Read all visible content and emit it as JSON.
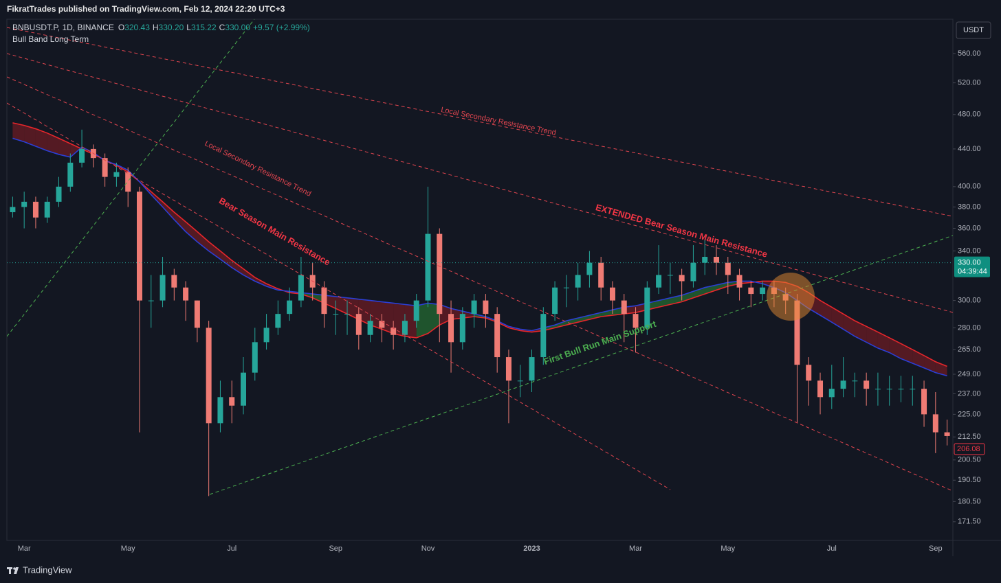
{
  "header": {
    "text": "FikratTrades published on TradingView.com, Feb 12, 2024 22:20 UTC+3"
  },
  "chart_data": {
    "type": "candlestick",
    "legend": {
      "symbol": "BNBUSDT.P, 1D, BINANCE",
      "ohlc": [
        {
          "key": "O",
          "value": "320.43"
        },
        {
          "key": "H",
          "value": "330.20"
        },
        {
          "key": "L",
          "value": "315.22"
        },
        {
          "key": "C",
          "value": "330.00"
        }
      ],
      "change": "+9.57 (+2.99%)",
      "indicator": "Bull Band Long Term"
    },
    "currency": "USDT",
    "log_scale": true,
    "up_color": "#26a69a",
    "down_color": "#ef7b74",
    "categories": [
      null,
      "Mar",
      null,
      null,
      null,
      null,
      null,
      null,
      null,
      null,
      "May",
      null,
      null,
      null,
      null,
      null,
      null,
      null,
      null,
      "Jul",
      null,
      null,
      null,
      null,
      null,
      null,
      null,
      null,
      "Sep",
      null,
      null,
      null,
      null,
      null,
      null,
      null,
      "Nov",
      null,
      null,
      null,
      null,
      null,
      null,
      null,
      null,
      "2023",
      null,
      null,
      null,
      null,
      null,
      null,
      null,
      null,
      "Mar",
      null,
      null,
      null,
      null,
      null,
      null,
      null,
      "May",
      null,
      null,
      null,
      null,
      null,
      null,
      null,
      null,
      "Jul",
      null,
      null,
      null,
      null,
      null,
      null,
      null,
      null,
      "Sep",
      null
    ],
    "open": [
      375,
      380,
      385,
      370,
      385,
      400,
      425,
      440,
      430,
      410,
      415,
      395,
      300,
      300,
      320,
      310,
      300,
      280,
      220,
      235,
      230,
      250,
      270,
      280,
      290,
      300,
      320,
      310,
      290,
      290,
      290,
      275,
      285,
      280,
      275,
      285,
      300,
      355,
      290,
      270,
      290,
      300,
      290,
      260,
      245,
      245,
      260,
      290,
      310,
      310,
      320,
      330,
      310,
      300,
      290,
      280,
      310,
      320,
      320,
      315,
      330,
      335,
      330,
      320,
      310,
      305,
      310,
      305,
      300,
      255,
      245,
      235,
      240,
      245,
      245,
      240,
      240,
      240,
      240,
      240,
      225,
      215
    ],
    "high": [
      390,
      395,
      390,
      390,
      410,
      435,
      462,
      445,
      435,
      425,
      420,
      400,
      320,
      335,
      325,
      315,
      300,
      285,
      245,
      245,
      260,
      280,
      290,
      300,
      310,
      335,
      330,
      315,
      300,
      300,
      295,
      290,
      290,
      285,
      290,
      305,
      400,
      360,
      300,
      295,
      305,
      305,
      295,
      265,
      255,
      265,
      295,
      315,
      320,
      330,
      340,
      335,
      315,
      305,
      295,
      315,
      345,
      330,
      325,
      345,
      350,
      345,
      335,
      325,
      315,
      315,
      315,
      310,
      305,
      260,
      250,
      255,
      260,
      250,
      250,
      250,
      248,
      248,
      248,
      245,
      238,
      222
    ],
    "low": [
      370,
      360,
      360,
      365,
      380,
      395,
      420,
      420,
      400,
      400,
      380,
      215,
      280,
      295,
      300,
      285,
      270,
      183,
      215,
      220,
      225,
      245,
      265,
      275,
      285,
      295,
      300,
      280,
      275,
      275,
      265,
      270,
      270,
      265,
      270,
      280,
      295,
      270,
      250,
      265,
      280,
      280,
      250,
      220,
      235,
      238,
      255,
      285,
      295,
      300,
      310,
      300,
      290,
      270,
      263,
      275,
      305,
      305,
      300,
      310,
      320,
      320,
      305,
      300,
      295,
      300,
      295,
      290,
      220,
      230,
      225,
      228,
      235,
      235,
      230,
      230,
      230,
      232,
      230,
      218,
      204,
      208
    ],
    "close": [
      380,
      385,
      370,
      385,
      400,
      425,
      440,
      430,
      410,
      415,
      395,
      300,
      300,
      320,
      310,
      300,
      280,
      220,
      235,
      230,
      250,
      270,
      280,
      290,
      300,
      320,
      310,
      290,
      290,
      290,
      275,
      285,
      280,
      275,
      285,
      300,
      355,
      290,
      270,
      290,
      300,
      290,
      260,
      245,
      245,
      260,
      290,
      310,
      310,
      320,
      330,
      310,
      300,
      290,
      280,
      310,
      320,
      320,
      315,
      330,
      335,
      330,
      320,
      310,
      305,
      310,
      305,
      300,
      255,
      245,
      235,
      240,
      245,
      245,
      240,
      240,
      240,
      240,
      240,
      225,
      215,
      213
    ],
    "series": [
      {
        "color": "#e8262b",
        "values": [
          470,
          467,
          463,
          458,
          452,
          446,
          440,
          434,
          428,
          422,
          415,
          405,
          395,
          385,
          375,
          366,
          357,
          348,
          340,
          332,
          325,
          318,
          313,
          309,
          306,
          305,
          302,
          298,
          294,
          290,
          286,
          282,
          279,
          276,
          274,
          273,
          276,
          282,
          286,
          287,
          288,
          287,
          284,
          280,
          278,
          277,
          278,
          280,
          282,
          284,
          286,
          288,
          289,
          290,
          291,
          293,
          295,
          297,
          299,
          302,
          305,
          308,
          311,
          313,
          314,
          315,
          315,
          314,
          311,
          306,
          300,
          295,
          290,
          285,
          281,
          277,
          273,
          269,
          265,
          261,
          257,
          254
        ]
      },
      {
        "color": "#2b3fd6",
        "values": [
          452,
          448,
          443,
          438,
          434,
          431,
          442,
          436,
          427,
          423,
          417,
          405,
          392,
          380,
          368,
          357,
          348,
          340,
          333,
          326,
          320,
          315,
          311,
          308,
          307,
          306,
          305,
          304,
          303,
          302,
          301,
          300,
          299,
          298,
          297,
          296,
          298,
          297,
          294,
          292,
          290,
          288,
          285,
          281,
          279,
          278,
          280,
          282,
          285,
          287,
          289,
          291,
          293,
          295,
          296,
          298,
          300,
          302,
          304,
          307,
          310,
          312,
          314,
          315,
          315,
          313,
          310,
          306,
          300,
          294,
          289,
          284,
          279,
          274,
          270,
          266,
          263,
          259,
          256,
          253,
          250,
          248
        ]
      }
    ],
    "ylim": [
      163.6,
      610.7
    ],
    "yticks": [
      {
        "value": 560,
        "label": "560.00"
      },
      {
        "value": 520,
        "label": "520.00"
      },
      {
        "value": 480,
        "label": "480.00"
      },
      {
        "value": 440,
        "label": "440.00"
      },
      {
        "value": 400,
        "label": "400.00"
      },
      {
        "value": 380,
        "label": "380.00"
      },
      {
        "value": 360,
        "label": "360.00"
      },
      {
        "value": 340,
        "label": "340.00"
      },
      {
        "value": 300,
        "label": "300.00"
      },
      {
        "value": 280,
        "label": "280.00"
      },
      {
        "value": 265,
        "label": "265.00"
      },
      {
        "value": 249,
        "label": "249.00"
      },
      {
        "value": 237,
        "label": "237.00"
      },
      {
        "value": 225,
        "label": "225.00"
      },
      {
        "value": 212.5,
        "label": "212.50"
      },
      {
        "value": 200.5,
        "label": "200.50"
      },
      {
        "value": 190.5,
        "label": "190.50"
      },
      {
        "value": 180.5,
        "label": "180.50"
      },
      {
        "value": 171.5,
        "label": "171.50"
      }
    ],
    "last_price": {
      "value": 330,
      "label": "330.00",
      "countdown": "04:39:44"
    },
    "low_marker": {
      "value": 206.08,
      "label": "206.08"
    },
    "annotations": [
      "Local Secondary Resistance Trend",
      "Local Secondary Resistance Trend",
      "Bear Season Main Resistance",
      "EXTENDED Bear Season Main Resistance",
      "First Bull Run Main Support"
    ]
  },
  "footer": {
    "brand": "TradingView"
  }
}
